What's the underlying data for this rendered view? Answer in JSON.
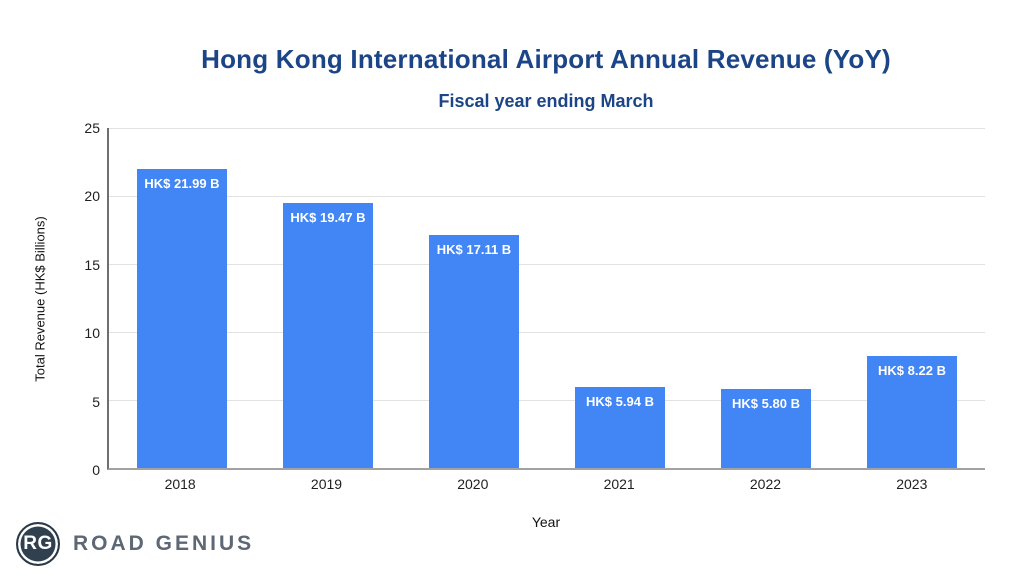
{
  "header": {
    "title": "Hong Kong International Airport Annual Revenue (YoY)",
    "subtitle": "Fiscal year ending March"
  },
  "chart_data": {
    "type": "bar",
    "title": "Hong Kong International Airport Annual Revenue (YoY)",
    "subtitle": "Fiscal year ending March",
    "categories": [
      "2018",
      "2019",
      "2020",
      "2021",
      "2022",
      "2023"
    ],
    "values": [
      21.99,
      19.47,
      17.11,
      5.94,
      5.8,
      8.22
    ],
    "bar_labels": [
      "HK$ 21.99 B",
      "HK$ 19.47 B",
      "HK$ 17.11 B",
      "HK$ 5.94 B",
      "HK$ 5.80 B",
      "HK$ 8.22 B"
    ],
    "xlabel": "Year",
    "ylabel": "Total Revenue (HK$ Billions)",
    "ylim": [
      0,
      25
    ],
    "yticks": [
      0,
      5,
      10,
      15,
      20,
      25
    ],
    "grid": true,
    "legend": "none",
    "colors": {
      "bar": "#4285f4",
      "bar_label_text": "#ffffff",
      "title_text": "#1c4587",
      "axis_text": "#1f1f1f",
      "gridline": "#e3e3e3"
    }
  },
  "logo": {
    "monogram": "RG",
    "wordmark": "ROAD GENIUS"
  }
}
